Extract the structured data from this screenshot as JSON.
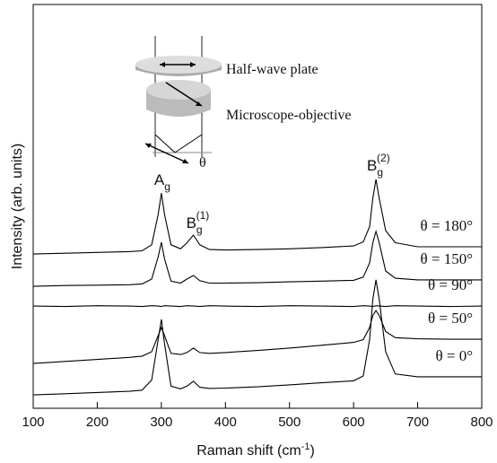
{
  "chart_data": {
    "type": "line",
    "y_label": "Intensity (arb. units)",
    "x_label": {
      "text": "Raman shift (cm",
      "superscript": "-1",
      "suffix": ")"
    },
    "x": [
      100,
      150,
      200,
      250,
      270,
      285,
      295,
      300,
      305,
      315,
      330,
      340,
      350,
      360,
      375,
      400,
      450,
      500,
      550,
      600,
      615,
      625,
      630,
      635,
      640,
      650,
      665,
      700,
      750,
      800
    ],
    "xlim": [
      100,
      800
    ],
    "xticks": [
      100,
      200,
      300,
      400,
      500,
      600,
      700,
      800
    ],
    "ylim": [
      0,
      100
    ],
    "series": [
      {
        "name": "θ = 180°",
        "color": "#000000",
        "values": [
          38.2,
          38.4,
          38.6,
          38.8,
          39.0,
          40.5,
          48,
          53.3,
          48,
          40.5,
          39.5,
          41,
          42.9,
          40.5,
          39.3,
          39.2,
          39.3,
          39.5,
          39.8,
          40.2,
          41.2,
          45,
          52,
          56.7,
          52,
          44,
          41,
          40,
          40,
          40
        ]
      },
      {
        "name": "θ = 150°",
        "color": "#000000",
        "values": [
          30.2,
          30.4,
          30.5,
          30.6,
          30.8,
          32,
          37.5,
          41.1,
          37,
          31.5,
          31,
          32,
          32.9,
          31.6,
          31,
          31,
          31.1,
          31.3,
          31.5,
          31.7,
          32.5,
          36,
          41,
          43.8,
          41,
          34,
          32.2,
          31.8,
          31.8,
          31.8
        ]
      },
      {
        "name": "θ = 90°",
        "color": "#000000",
        "values": [
          25.3,
          25.2,
          25.4,
          25.3,
          25.2,
          25.4,
          25.3,
          25.2,
          25.4,
          25.3,
          25.2,
          25.4,
          25.3,
          25.2,
          25.4,
          25.3,
          25.2,
          25.4,
          25.3,
          25.2,
          25.4,
          25.3,
          25.2,
          25.4,
          25.3,
          25.2,
          25.4,
          25.3,
          25.2,
          25.3
        ]
      },
      {
        "name": "θ = 50°",
        "color": "#000000",
        "values": [
          11.1,
          11.6,
          12.1,
          12.6,
          12.9,
          14,
          18,
          20,
          18,
          13.6,
          13.3,
          13.8,
          14.9,
          13.8,
          13.6,
          13.8,
          14.3,
          14.9,
          15.6,
          16.3,
          17,
          20,
          23,
          24.2,
          23,
          19,
          17.5,
          17.2,
          17.1,
          17.1
        ]
      },
      {
        "name": "θ = 0°",
        "color": "#000000",
        "values": [
          3.3,
          3.6,
          3.9,
          4.2,
          4.5,
          7,
          17,
          22,
          16,
          5.5,
          4.8,
          5.5,
          6.7,
          5.2,
          4.9,
          5,
          5.3,
          5.8,
          6.3,
          6.8,
          8,
          17,
          27,
          31.8,
          27,
          14,
          8.5,
          7.8,
          7.8,
          7.8
        ]
      }
    ],
    "peak_labels": [
      {
        "text": "A",
        "subscript": "g"
      },
      {
        "text": "B",
        "subscript": "g",
        "superscript": "(1)"
      },
      {
        "text": "B",
        "subscript": "g",
        "superscript": "(2)"
      }
    ],
    "inset": {
      "half_wave_plate": "Half-wave plate",
      "objective": "Microscope-objective",
      "angle": "θ"
    }
  }
}
